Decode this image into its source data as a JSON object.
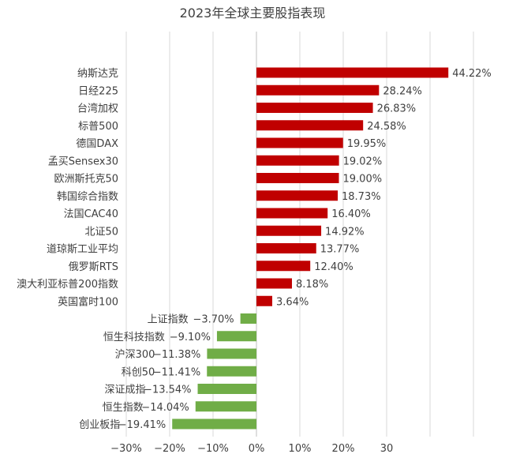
{
  "chart_data": {
    "type": "bar",
    "orientation": "horizontal",
    "title": "2023年全球主要股指表现",
    "xlabel": "",
    "ylabel": "",
    "xlim": [
      -30,
      50
    ],
    "x_ticks": [
      -30,
      -20,
      -10,
      0,
      10,
      20,
      30
    ],
    "x_tick_labels": [
      "−30%",
      "−20%",
      "−10%",
      "0%",
      "10%",
      "20%",
      "30"
    ],
    "grid": true,
    "legend": "none",
    "colors": {
      "positive": "#c00000",
      "negative": "#70ad47"
    },
    "categories": [
      "纳斯达克",
      "日经225",
      "台湾加权",
      "标普500",
      "德国DAX",
      "孟买Sensex30",
      "欧洲斯托克50",
      "韩国综合指数",
      "法国CAC40",
      "北证50",
      "道琼斯工业平均",
      "俄罗斯RTS",
      "澳大利亚标普200指数",
      "英国富时100",
      "上证指数",
      "恒生科技指数",
      "沪深300",
      "科创50",
      "深证成指",
      "恒生指数",
      "创业板指"
    ],
    "values": [
      44.22,
      28.24,
      26.83,
      24.58,
      19.95,
      19.02,
      19.0,
      18.73,
      16.4,
      14.92,
      13.77,
      12.4,
      8.18,
      3.64,
      -3.7,
      -9.1,
      -11.38,
      -11.41,
      -13.54,
      -14.04,
      -19.41
    ],
    "data_labels": [
      "44.22%",
      "28.24%",
      "26.83%",
      "24.58%",
      "19.95%",
      "19.02%",
      "19.00%",
      "18.73%",
      "16.40%",
      "14.92%",
      "13.77%",
      "12.40%",
      "8.18%",
      "3.64%",
      "−3.70%",
      "−9.10%",
      "−11.38%",
      "−11.41%",
      "−13.54%",
      "−14.04%",
      "−19.41%"
    ]
  }
}
